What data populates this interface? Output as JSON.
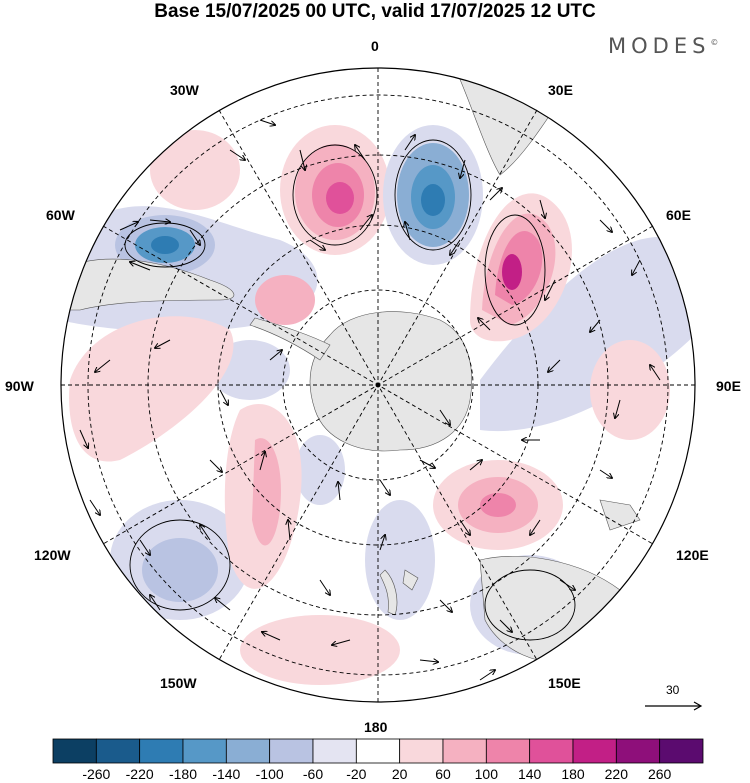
{
  "title": "Base 15/07/2025 00 UTC, valid 17/07/2025 12 UTC",
  "brand": "MODES",
  "brand_mark": "©",
  "longitude_labels": [
    {
      "text": "0",
      "pos": "top"
    },
    {
      "text": "30E",
      "pos": "upper-right"
    },
    {
      "text": "60E",
      "pos": "right-upper"
    },
    {
      "text": "90E",
      "pos": "right"
    },
    {
      "text": "120E",
      "pos": "right-lower"
    },
    {
      "text": "150E",
      "pos": "lower-right"
    },
    {
      "text": "180",
      "pos": "bottom"
    },
    {
      "text": "150W",
      "pos": "lower-left"
    },
    {
      "text": "120W",
      "pos": "left-lower"
    },
    {
      "text": "90W",
      "pos": "left"
    },
    {
      "text": "60W",
      "pos": "left-upper"
    },
    {
      "text": "30W",
      "pos": "upper-left"
    }
  ],
  "colorbar": {
    "ticks": [
      "-260",
      "-220",
      "-180",
      "-140",
      "-100",
      "-60",
      "-20",
      "20",
      "60",
      "100",
      "140",
      "180",
      "220",
      "260"
    ],
    "colors": [
      "#0c3f63",
      "#1a5b8c",
      "#2e7cb3",
      "#5698c7",
      "#8aaed4",
      "#b9c3e2",
      "#e4e4f2",
      "#ffffff",
      "#f9d8dc",
      "#f5b1c1",
      "#ee84aa",
      "#e0519a",
      "#c21f86",
      "#8e0f7a",
      "#5b0b6f"
    ]
  },
  "reference_vector": {
    "label": "30"
  },
  "anomaly_colors": {
    "strong_negative": "#2e7cb3",
    "medium_negative": "#8aaed4",
    "weak_negative": "#d9dbee",
    "weak_positive": "#f9d8dc",
    "medium_positive": "#f5b1c1",
    "strong_positive": "#e0519a",
    "extreme_positive": "#c21f86",
    "land": "#e6e6e6"
  }
}
